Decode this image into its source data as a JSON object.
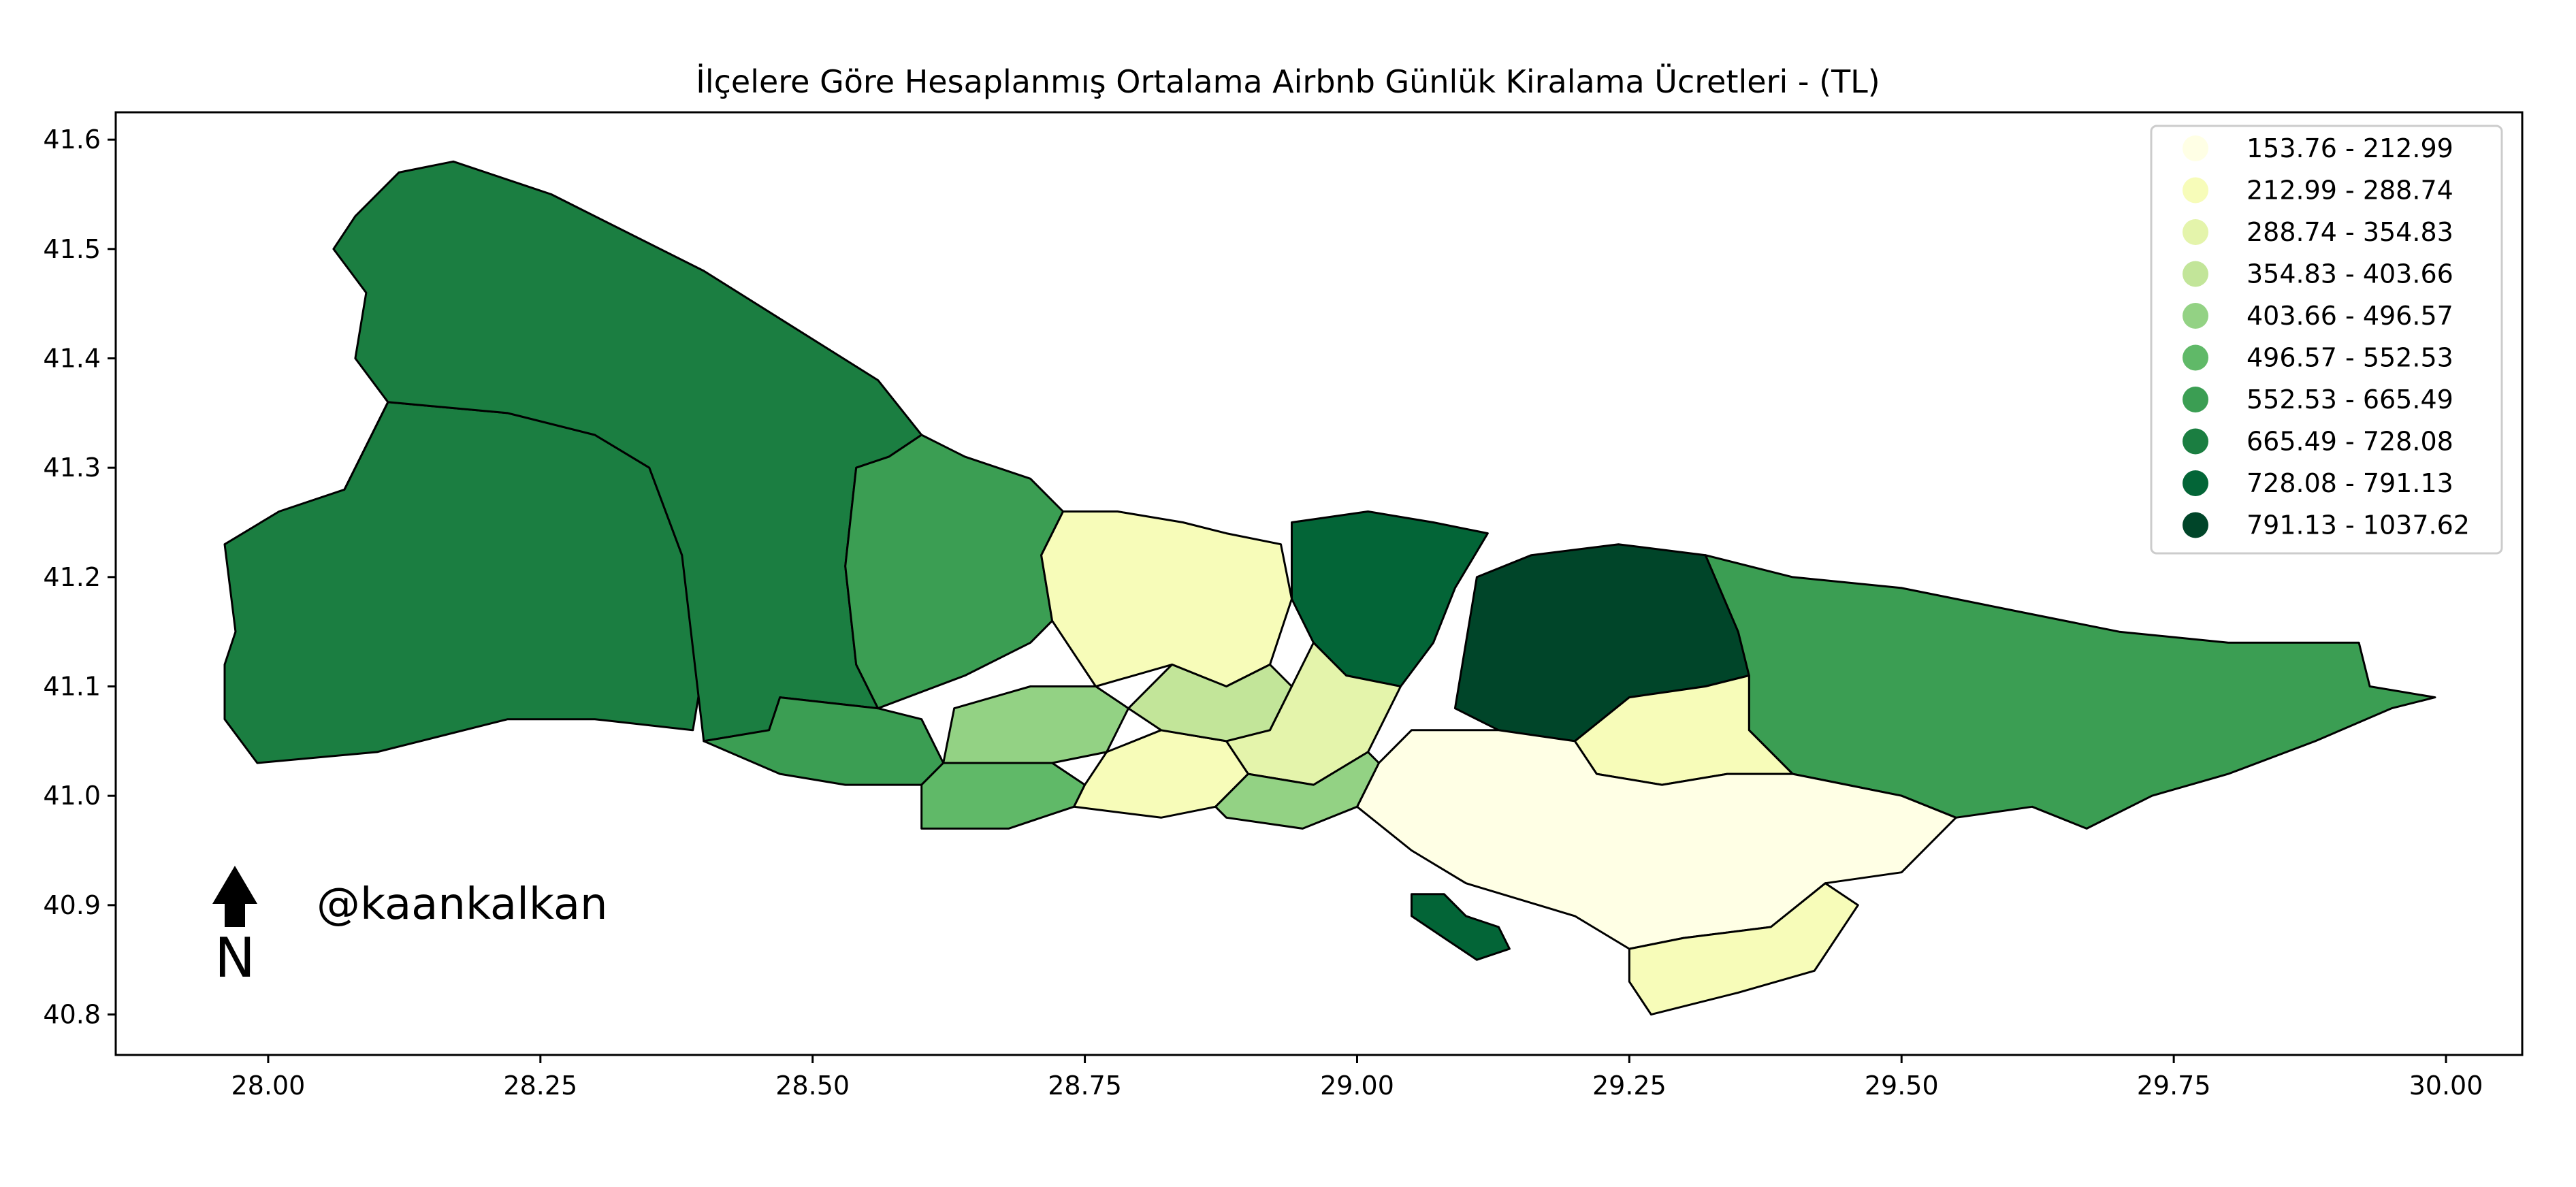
{
  "title": "İlçelere Göre Hesaplanmış Ortalama Airbnb Günlük Kiralama Ücretleri - (TL)",
  "axes": {
    "xlim": [
      27.86,
      30.07
    ],
    "ylim": [
      40.763,
      41.625
    ],
    "x_ticks": [
      {
        "value": 28.0,
        "label": "28.00"
      },
      {
        "value": 28.25,
        "label": "28.25"
      },
      {
        "value": 28.5,
        "label": "28.50"
      },
      {
        "value": 28.75,
        "label": "28.75"
      },
      {
        "value": 29.0,
        "label": "29.00"
      },
      {
        "value": 29.25,
        "label": "29.25"
      },
      {
        "value": 29.5,
        "label": "29.50"
      },
      {
        "value": 29.75,
        "label": "29.75"
      },
      {
        "value": 30.0,
        "label": "30.00"
      }
    ],
    "y_ticks": [
      {
        "value": 41.6,
        "label": "41.6"
      },
      {
        "value": 41.5,
        "label": "41.5"
      },
      {
        "value": 41.4,
        "label": "41.4"
      },
      {
        "value": 41.3,
        "label": "41.3"
      },
      {
        "value": 41.2,
        "label": "41.2"
      },
      {
        "value": 41.1,
        "label": "41.1"
      },
      {
        "value": 41.0,
        "label": "41.0"
      },
      {
        "value": 40.9,
        "label": "40.9"
      },
      {
        "value": 40.8,
        "label": "40.8"
      }
    ]
  },
  "legend": {
    "placement": "top-right",
    "classes": [
      {
        "label": "153.76 - 212.99",
        "color": "#ffffe5"
      },
      {
        "label": "212.99 - 288.74",
        "color": "#f7fcb9"
      },
      {
        "label": "288.74 - 354.83",
        "color": "#e4f4ab"
      },
      {
        "label": "354.83 - 403.66",
        "color": "#c2e599"
      },
      {
        "label": "403.66 - 496.57",
        "color": "#93d284"
      },
      {
        "label": "496.57 - 552.53",
        "color": "#60b968"
      },
      {
        "label": "552.53 - 665.49",
        "color": "#3b9e53"
      },
      {
        "label": "665.49 - 728.08",
        "color": "#1b7e41"
      },
      {
        "label": "728.08 - 791.13",
        "color": "#036537"
      },
      {
        "label": "791.13 - 1037.62",
        "color": "#004529"
      }
    ]
  },
  "credit": "@kaankalkan",
  "north_label": "N",
  "chart_data": {
    "type": "choropleth",
    "title": "İlçelere Göre Hesaplanmış Ortalama Airbnb Günlük Kiralama Ücretleri - (TL)",
    "xlim": [
      27.86,
      30.07
    ],
    "ylim": [
      40.763,
      41.625
    ],
    "legend_placement": "top-right",
    "grid": false,
    "regions": [
      {
        "class": 7,
        "points": [
          [
            27.96,
            41.23
          ],
          [
            27.97,
            41.15
          ],
          [
            27.96,
            41.12
          ],
          [
            27.96,
            41.07
          ],
          [
            27.99,
            41.03
          ],
          [
            28.1,
            41.04
          ],
          [
            28.22,
            41.07
          ],
          [
            28.3,
            41.07
          ],
          [
            28.39,
            41.06
          ],
          [
            28.4,
            41.12
          ],
          [
            28.38,
            41.22
          ],
          [
            28.35,
            41.3
          ],
          [
            28.3,
            41.33
          ],
          [
            28.22,
            41.35
          ],
          [
            28.11,
            41.36
          ],
          [
            28.07,
            41.28
          ],
          [
            28.01,
            41.26
          ]
        ]
      },
      {
        "class": 7,
        "points": [
          [
            28.07,
            41.28
          ],
          [
            28.11,
            41.36
          ],
          [
            28.08,
            41.4
          ],
          [
            28.09,
            41.46
          ],
          [
            28.06,
            41.5
          ],
          [
            28.08,
            41.53
          ],
          [
            28.12,
            41.57
          ],
          [
            28.17,
            41.58
          ],
          [
            28.26,
            41.55
          ],
          [
            28.4,
            41.48
          ],
          [
            28.48,
            41.43
          ],
          [
            28.56,
            41.38
          ],
          [
            28.6,
            41.33
          ],
          [
            28.57,
            41.31
          ],
          [
            28.54,
            41.3
          ],
          [
            28.53,
            41.21
          ],
          [
            28.54,
            41.12
          ],
          [
            28.56,
            41.08
          ],
          [
            28.47,
            41.09
          ],
          [
            28.46,
            41.06
          ],
          [
            28.4,
            41.05
          ],
          [
            28.38,
            41.22
          ],
          [
            28.35,
            41.3
          ],
          [
            28.3,
            41.33
          ],
          [
            28.22,
            41.35
          ],
          [
            28.11,
            41.36
          ]
        ]
      },
      {
        "class": 6,
        "points": [
          [
            28.4,
            41.05
          ],
          [
            28.46,
            41.06
          ],
          [
            28.47,
            41.09
          ],
          [
            28.56,
            41.08
          ],
          [
            28.6,
            41.07
          ],
          [
            28.62,
            41.03
          ],
          [
            28.6,
            41.01
          ],
          [
            28.53,
            41.01
          ],
          [
            28.47,
            41.02
          ]
        ]
      },
      {
        "class": 6,
        "points": [
          [
            28.53,
            41.21
          ],
          [
            28.54,
            41.3
          ],
          [
            28.57,
            41.31
          ],
          [
            28.6,
            41.33
          ],
          [
            28.64,
            41.31
          ],
          [
            28.7,
            41.29
          ],
          [
            28.73,
            41.26
          ],
          [
            28.71,
            41.22
          ],
          [
            28.72,
            41.16
          ],
          [
            28.7,
            41.14
          ],
          [
            28.64,
            41.11
          ],
          [
            28.56,
            41.08
          ],
          [
            28.54,
            41.12
          ]
        ]
      },
      {
        "class": 1,
        "points": [
          [
            28.73,
            41.26
          ],
          [
            28.78,
            41.26
          ],
          [
            28.84,
            41.25
          ],
          [
            28.88,
            41.24
          ],
          [
            28.93,
            41.23
          ],
          [
            28.94,
            41.18
          ],
          [
            28.92,
            41.12
          ],
          [
            28.88,
            41.1
          ],
          [
            28.83,
            41.12
          ],
          [
            28.76,
            41.1
          ],
          [
            28.72,
            41.16
          ],
          [
            28.71,
            41.22
          ]
        ]
      },
      {
        "class": 8,
        "points": [
          [
            28.94,
            41.25
          ],
          [
            29.01,
            41.26
          ],
          [
            29.07,
            41.25
          ],
          [
            29.12,
            41.24
          ],
          [
            29.09,
            41.19
          ],
          [
            29.07,
            41.14
          ],
          [
            29.04,
            41.1
          ],
          [
            28.99,
            41.11
          ],
          [
            28.96,
            41.14
          ],
          [
            28.94,
            41.18
          ]
        ]
      },
      {
        "class": 9,
        "points": [
          [
            29.1,
            41.14
          ],
          [
            29.11,
            41.2
          ],
          [
            29.16,
            41.22
          ],
          [
            29.24,
            41.23
          ],
          [
            29.32,
            41.22
          ],
          [
            29.35,
            41.15
          ],
          [
            29.36,
            41.11
          ],
          [
            29.32,
            41.1
          ],
          [
            29.25,
            41.09
          ],
          [
            29.2,
            41.05
          ],
          [
            29.13,
            41.06
          ],
          [
            29.09,
            41.08
          ]
        ]
      },
      {
        "class": 6,
        "points": [
          [
            29.32,
            41.22
          ],
          [
            29.4,
            41.2
          ],
          [
            29.5,
            41.19
          ],
          [
            29.6,
            41.17
          ],
          [
            29.7,
            41.15
          ],
          [
            29.8,
            41.14
          ],
          [
            29.92,
            41.14
          ],
          [
            29.93,
            41.1
          ],
          [
            29.99,
            41.09
          ],
          [
            29.95,
            41.08
          ],
          [
            29.88,
            41.05
          ],
          [
            29.8,
            41.02
          ],
          [
            29.73,
            41.0
          ],
          [
            29.67,
            40.97
          ],
          [
            29.62,
            40.99
          ],
          [
            29.55,
            40.98
          ],
          [
            29.5,
            41.0
          ],
          [
            29.45,
            41.01
          ],
          [
            29.4,
            41.02
          ],
          [
            29.36,
            41.06
          ],
          [
            29.36,
            41.11
          ],
          [
            29.35,
            41.15
          ]
        ]
      },
      {
        "class": 1,
        "points": [
          [
            29.2,
            41.05
          ],
          [
            29.25,
            41.09
          ],
          [
            29.32,
            41.1
          ],
          [
            29.36,
            41.11
          ],
          [
            29.36,
            41.06
          ],
          [
            29.4,
            41.02
          ],
          [
            29.34,
            41.02
          ],
          [
            29.28,
            41.01
          ],
          [
            29.22,
            41.02
          ]
        ]
      },
      {
        "class": 0,
        "points": [
          [
            29.05,
            41.06
          ],
          [
            29.13,
            41.06
          ],
          [
            29.2,
            41.05
          ],
          [
            29.22,
            41.02
          ],
          [
            29.28,
            41.01
          ],
          [
            29.34,
            41.02
          ],
          [
            29.4,
            41.02
          ],
          [
            29.45,
            41.01
          ],
          [
            29.5,
            41.0
          ],
          [
            29.55,
            40.98
          ],
          [
            29.5,
            40.93
          ],
          [
            29.43,
            40.92
          ],
          [
            29.38,
            40.88
          ],
          [
            29.3,
            40.87
          ],
          [
            29.25,
            40.86
          ],
          [
            29.2,
            40.89
          ],
          [
            29.1,
            40.92
          ],
          [
            29.05,
            40.95
          ],
          [
            29.0,
            40.99
          ],
          [
            29.02,
            41.03
          ]
        ]
      },
      {
        "class": 1,
        "points": [
          [
            29.3,
            40.87
          ],
          [
            29.38,
            40.88
          ],
          [
            29.43,
            40.92
          ],
          [
            29.46,
            40.9
          ],
          [
            29.42,
            40.84
          ],
          [
            29.35,
            40.82
          ],
          [
            29.27,
            40.8
          ],
          [
            29.25,
            40.83
          ],
          [
            29.25,
            40.86
          ]
        ]
      },
      {
        "class": 4,
        "points": [
          [
            28.62,
            41.03
          ],
          [
            28.63,
            41.08
          ],
          [
            28.7,
            41.1
          ],
          [
            28.76,
            41.1
          ],
          [
            28.79,
            41.08
          ],
          [
            28.77,
            41.04
          ],
          [
            28.72,
            41.03
          ]
        ]
      },
      {
        "class": 5,
        "points": [
          [
            28.6,
            41.01
          ],
          [
            28.62,
            41.03
          ],
          [
            28.72,
            41.03
          ],
          [
            28.75,
            41.01
          ],
          [
            28.74,
            40.99
          ],
          [
            28.68,
            40.97
          ],
          [
            28.6,
            40.97
          ]
        ]
      },
      {
        "class": 1,
        "points": [
          [
            28.75,
            41.01
          ],
          [
            28.77,
            41.04
          ],
          [
            28.82,
            41.06
          ],
          [
            28.88,
            41.05
          ],
          [
            28.9,
            41.02
          ],
          [
            28.87,
            40.99
          ],
          [
            28.82,
            40.98
          ],
          [
            28.74,
            40.99
          ]
        ]
      },
      {
        "class": 3,
        "points": [
          [
            28.83,
            41.12
          ],
          [
            28.88,
            41.1
          ],
          [
            28.92,
            41.12
          ],
          [
            28.94,
            41.1
          ],
          [
            28.92,
            41.06
          ],
          [
            28.88,
            41.05
          ],
          [
            28.82,
            41.06
          ],
          [
            28.79,
            41.08
          ]
        ]
      },
      {
        "class": 2,
        "points": [
          [
            28.88,
            41.05
          ],
          [
            28.92,
            41.06
          ],
          [
            28.94,
            41.1
          ],
          [
            28.96,
            41.14
          ],
          [
            28.99,
            41.11
          ],
          [
            29.04,
            41.1
          ],
          [
            29.01,
            41.04
          ],
          [
            28.96,
            41.01
          ],
          [
            28.9,
            41.02
          ]
        ]
      },
      {
        "class": 4,
        "points": [
          [
            28.9,
            41.02
          ],
          [
            28.96,
            41.01
          ],
          [
            29.01,
            41.04
          ],
          [
            29.02,
            41.03
          ],
          [
            29.0,
            40.99
          ],
          [
            28.95,
            40.97
          ],
          [
            28.88,
            40.98
          ],
          [
            28.87,
            40.99
          ]
        ]
      },
      {
        "class": 8,
        "points": [
          [
            29.05,
            40.91
          ],
          [
            29.08,
            40.91
          ],
          [
            29.1,
            40.89
          ],
          [
            29.13,
            40.88
          ],
          [
            29.14,
            40.86
          ],
          [
            29.11,
            40.85
          ],
          [
            29.08,
            40.87
          ],
          [
            29.05,
            40.89
          ]
        ]
      }
    ]
  }
}
